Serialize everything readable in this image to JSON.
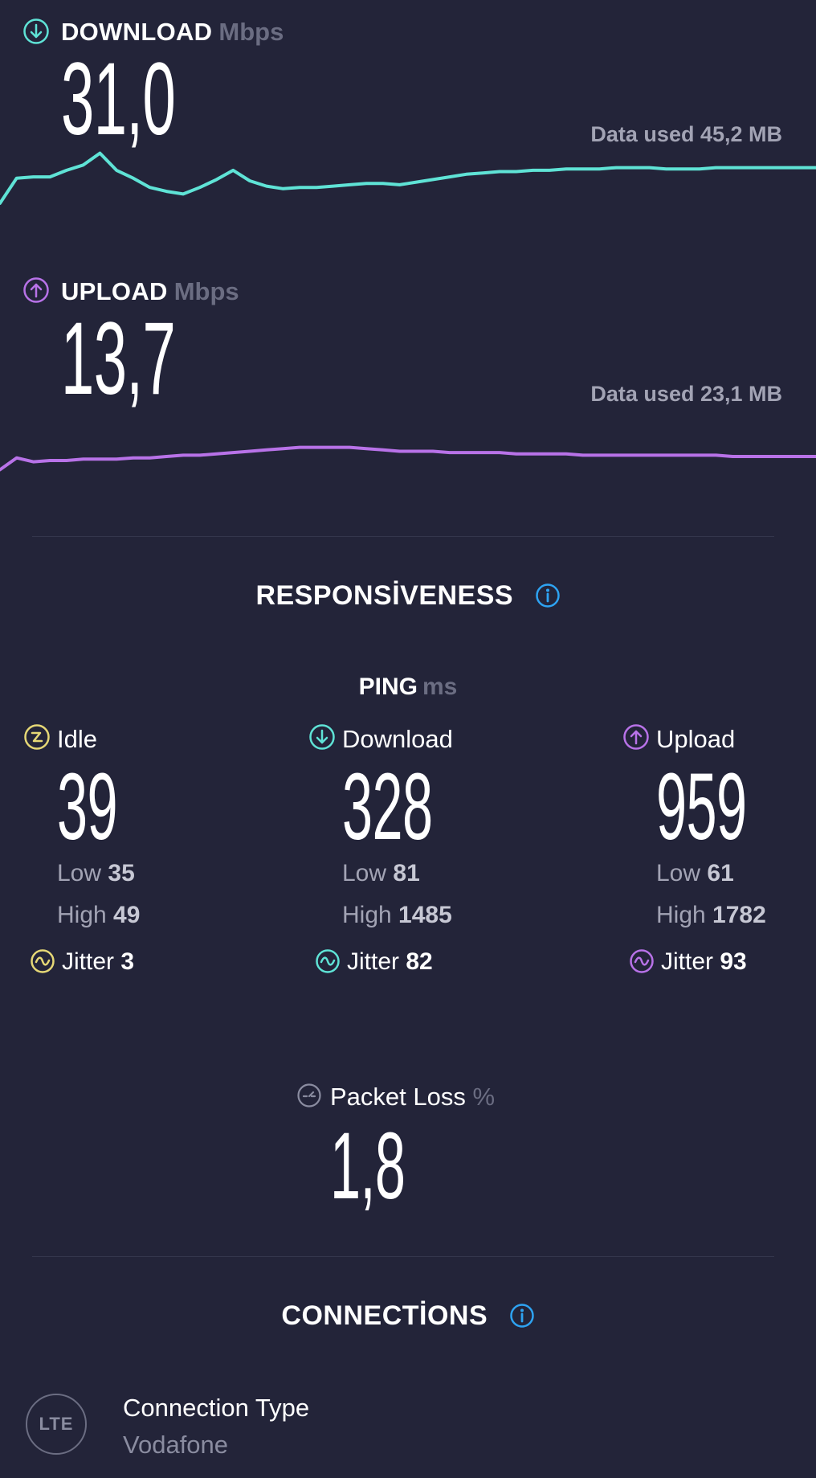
{
  "download": {
    "label": "DOWNLOAD",
    "unit": "Mbps",
    "value": "31,0",
    "data_used": "Data used 45,2 MB",
    "color": "#5fe3d6",
    "chart_data": {
      "type": "line",
      "series": [
        {
          "values": [
            8,
            27,
            28,
            28,
            33,
            37,
            46,
            33,
            27,
            20,
            17,
            15,
            20,
            26,
            33,
            25,
            21,
            19,
            20,
            20,
            21,
            22,
            23,
            23,
            22,
            24,
            26,
            28,
            30,
            31,
            32,
            32,
            33,
            33,
            34,
            34,
            34,
            35,
            35,
            35,
            34,
            34,
            34,
            35,
            35,
            35,
            35,
            35,
            35,
            35
          ]
        }
      ]
    }
  },
  "upload": {
    "label": "UPLOAD",
    "unit": "Mbps",
    "value": "13,7",
    "data_used": "Data used 23,1 MB",
    "color": "#b872e8",
    "chart_data": {
      "type": "line",
      "series": [
        {
          "values": [
            4,
            13,
            10,
            11,
            11,
            12,
            12,
            12,
            13,
            13,
            14,
            15,
            15,
            16,
            17,
            18,
            19,
            20,
            21,
            21,
            21,
            21,
            20,
            19,
            18,
            18,
            18,
            17,
            17,
            17,
            17,
            16,
            16,
            16,
            16,
            15,
            15,
            15,
            15,
            15,
            15,
            15,
            15,
            15,
            14,
            14,
            14,
            14,
            14,
            14
          ]
        }
      ]
    }
  },
  "responsiveness": {
    "title": "RESPONSİVENESS",
    "ping_label": "PING",
    "ping_unit": "ms",
    "columns": [
      {
        "label": "Idle",
        "value": "39",
        "low_label": "Low",
        "low": "35",
        "high_label": "High",
        "high": "49",
        "jitter_label": "Jitter",
        "jitter": "3",
        "color": "#e6d876",
        "icon": "lightning-icon"
      },
      {
        "label": "Download",
        "value": "328",
        "low_label": "Low",
        "low": "81",
        "high_label": "High",
        "high": "1485",
        "jitter_label": "Jitter",
        "jitter": "82",
        "color": "#5fe3d6",
        "icon": "download-arrow-icon"
      },
      {
        "label": "Upload",
        "value": "959",
        "low_label": "Low",
        "low": "61",
        "high_label": "High",
        "high": "1782",
        "jitter_label": "Jitter",
        "jitter": "93",
        "color": "#b872e8",
        "icon": "upload-arrow-icon"
      }
    ],
    "packet_loss": {
      "label": "Packet Loss",
      "unit": "%",
      "value": "1,8"
    }
  },
  "connections": {
    "title": "CONNECTİONS",
    "badge": "LTE",
    "type_label": "Connection Type",
    "provider": "Vodafone"
  },
  "info_icon_color": "#2ea3f2"
}
